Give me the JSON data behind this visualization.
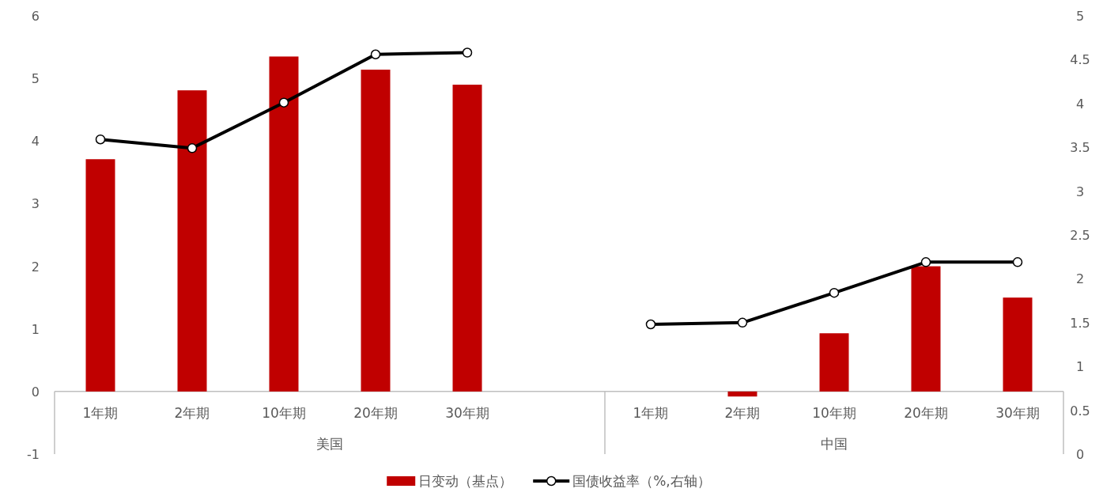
{
  "chart_data": {
    "type": "bar",
    "categories": [
      "1年期",
      "2年期",
      "10年期",
      "20年期",
      "30年期",
      null,
      "1年期",
      "2年期",
      "10年期",
      "20年期",
      "30年期"
    ],
    "series": [
      {
        "name": "日变动（基点）",
        "color": "#c00000",
        "values": [
          3.71,
          4.81,
          5.35,
          5.14,
          4.9,
          null,
          0,
          -0.08,
          0.93,
          2.0,
          1.5
        ]
      },
      {
        "name": "国债收益率（%,右轴）",
        "type": "line",
        "axis": "y2",
        "color": "#000000",
        "marker": "circle",
        "line_style": "solid",
        "values": [
          3.59,
          3.49,
          4.01,
          4.56,
          4.58,
          null,
          1.48,
          1.5,
          1.84,
          2.19,
          2.19
        ]
      }
    ],
    "ylim": [
      -1,
      6
    ],
    "yticks": [
      -1,
      0,
      1,
      2,
      3,
      4,
      5,
      6
    ],
    "y2lim": [
      0,
      5
    ],
    "y2ticks": [
      0,
      0.5,
      1,
      1.5,
      2,
      2.5,
      3,
      3.5,
      4,
      4.5,
      5
    ],
    "legend": "bottom",
    "grid": false,
    "annotations": [
      "美国",
      "中国"
    ]
  }
}
